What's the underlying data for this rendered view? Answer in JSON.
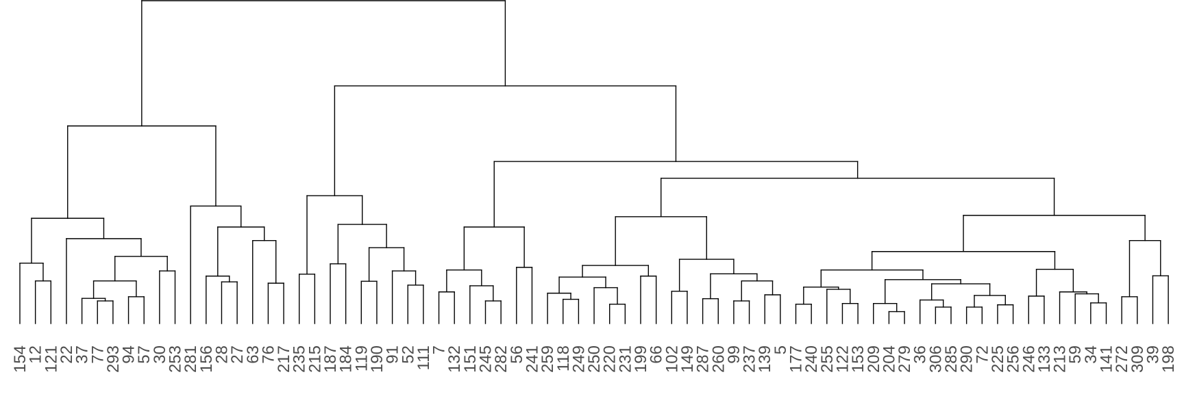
{
  "chart_data": {
    "type": "dendrogram",
    "title": "",
    "xlabel": "",
    "ylabel": "",
    "height_scale_note_visible": false,
    "line_color": "#000000",
    "label_color": "#4d4d4d",
    "leaf_order": [
      "154",
      "12",
      "121",
      "22",
      "37",
      "77",
      "293",
      "94",
      "57",
      "30",
      "253",
      "281",
      "156",
      "28",
      "27",
      "63",
      "76",
      "217",
      "235",
      "215",
      "187",
      "184",
      "119",
      "190",
      "91",
      "52",
      "111",
      "7",
      "132",
      "151",
      "245",
      "282",
      "56",
      "241",
      "259",
      "118",
      "249",
      "250",
      "220",
      "231",
      "199",
      "66",
      "102",
      "149",
      "287",
      "260",
      "99",
      "237",
      "139",
      "5",
      "177",
      "240",
      "255",
      "122",
      "153",
      "209",
      "204",
      "279",
      "36",
      "306",
      "285",
      "290",
      "72",
      "225",
      "256",
      "246",
      "133",
      "213",
      "59",
      "34",
      "141",
      "272",
      "309",
      "39",
      "198"
    ],
    "tree": {
      "h": 100,
      "c": [
        {
          "h": 61.2,
          "c": [
            {
              "h": 32.6,
              "c": [
                {
                  "h": 18.7,
                  "c": [
                    "154",
                    {
                      "h": 13.2,
                      "c": [
                        "12",
                        "121"
                      ]
                    }
                  ]
                },
                {
                  "h": 26.3,
                  "c": [
                    "22",
                    {
                      "h": 20.8,
                      "c": [
                        {
                          "h": 13.2,
                          "c": [
                            {
                              "h": 7.8,
                              "c": [
                                "37",
                                {
                                  "h": 7.0,
                                  "c": [
                                    "77",
                                    "293"
                                  ]
                                }
                              ]
                            },
                            {
                              "h": 8.3,
                              "c": [
                                "94",
                                "57"
                              ]
                            }
                          ]
                        },
                        {
                          "h": 16.3,
                          "c": [
                            "30",
                            "253"
                          ]
                        }
                      ]
                    }
                  ]
                }
              ]
            },
            {
              "h": 36.4,
              "c": [
                "281",
                {
                  "h": 29.9,
                  "c": [
                    {
                      "h": 14.7,
                      "c": [
                        "156",
                        {
                          "h": 12.9,
                          "c": [
                            "28",
                            "27"
                          ]
                        }
                      ]
                    },
                    {
                      "h": 25.7,
                      "c": [
                        "63",
                        {
                          "h": 12.5,
                          "c": [
                            "76",
                            "217"
                          ]
                        }
                      ]
                    }
                  ]
                }
              ]
            }
          ]
        },
        {
          "h": 73.6,
          "c": [
            {
              "h": 39.6,
              "c": [
                {
                  "h": 15.3,
                  "c": [
                    "235",
                    "215"
                  ]
                },
                {
                  "h": 30.7,
                  "c": [
                    {
                      "h": 18.5,
                      "c": [
                        "187",
                        "184"
                      ]
                    },
                    {
                      "h": 23.5,
                      "c": [
                        {
                          "h": 13.1,
                          "c": [
                            "119",
                            "190"
                          ]
                        },
                        {
                          "h": 16.3,
                          "c": [
                            "91",
                            {
                              "h": 11.9,
                              "c": [
                                "52",
                                "111"
                              ]
                            }
                          ]
                        }
                      ]
                    }
                  ]
                }
              ]
            },
            {
              "h": 50.2,
              "c": [
                {
                  "h": 29.9,
                  "c": [
                    {
                      "h": 16.6,
                      "c": [
                        {
                          "h": 9.8,
                          "c": [
                            "7",
                            "132"
                          ]
                        },
                        {
                          "h": 11.7,
                          "c": [
                            "151",
                            {
                              "h": 7.0,
                              "c": [
                                "245",
                                "282"
                              ]
                            }
                          ]
                        }
                      ]
                    },
                    {
                      "h": 17.4,
                      "c": [
                        "56",
                        "241"
                      ]
                    }
                  ]
                },
                {
                  "h": 45.0,
                  "c": [
                    {
                      "h": 33.1,
                      "c": [
                        {
                          "h": 18.0,
                          "c": [
                            {
                              "h": 14.4,
                              "c": [
                                {
                                  "h": 9.4,
                                  "c": [
                                    "259",
                                    {
                                      "h": 7.5,
                                      "c": [
                                        "118",
                                        "249"
                                      ]
                                    }
                                  ]
                                },
                                {
                                  "h": 11.1,
                                  "c": [
                                    "250",
                                    {
                                      "h": 6.0,
                                      "c": [
                                        "220",
                                        "231"
                                      ]
                                    }
                                  ]
                                }
                              ]
                            },
                            {
                              "h": 14.7,
                              "c": [
                                "199",
                                "66"
                              ]
                            }
                          ]
                        },
                        {
                          "h": 19.9,
                          "c": [
                            {
                              "h": 10.0,
                              "c": [
                                "102",
                                "149"
                              ]
                            },
                            {
                              "h": 15.4,
                              "c": [
                                {
                                  "h": 7.7,
                                  "c": [
                                    "287",
                                    "260"
                                  ]
                                },
                                {
                                  "h": 13.2,
                                  "c": [
                                    {
                                      "h": 7.0,
                                      "c": [
                                        "99",
                                        "237"
                                      ]
                                    },
                                    {
                                      "h": 8.9,
                                      "c": [
                                        "139",
                                        "5"
                                      ]
                                    }
                                  ]
                                }
                              ]
                            }
                          ]
                        }
                      ]
                    },
                    {
                      "h": 33.5,
                      "c": [
                        {
                          "h": 22.3,
                          "c": [
                            {
                              "h": 16.6,
                              "c": [
                                {
                                  "h": 11.3,
                                  "c": [
                                    {
                                      "h": 6.0,
                                      "c": [
                                        "177",
                                        "240"
                                      ]
                                    },
                                    {
                                      "h": 10.6,
                                      "c": [
                                        "255",
                                        {
                                          "h": 6.2,
                                          "c": [
                                            "122",
                                            "153"
                                          ]
                                        }
                                      ]
                                    }
                                  ]
                                },
                                {
                                  "h": 13.6,
                                  "c": [
                                    {
                                      "h": 6.2,
                                      "c": [
                                        "209",
                                        {
                                          "h": 3.7,
                                          "c": [
                                            "204",
                                            "279"
                                          ]
                                        }
                                      ]
                                    },
                                    {
                                      "h": 12.3,
                                      "c": [
                                        {
                                          "h": 7.3,
                                          "c": [
                                            "36",
                                            {
                                              "h": 5.1,
                                              "c": [
                                                "306",
                                                "285"
                                              ]
                                            }
                                          ]
                                        },
                                        {
                                          "h": 8.7,
                                          "c": [
                                            {
                                              "h": 5.1,
                                              "c": [
                                                "290",
                                                "72"
                                              ]
                                            },
                                            {
                                              "h": 5.8,
                                              "c": [
                                                "225",
                                                "256"
                                              ]
                                            }
                                          ]
                                        }
                                      ]
                                    }
                                  ]
                                }
                              ]
                            },
                            {
                              "h": 16.8,
                              "c": [
                                {
                                  "h": 8.5,
                                  "c": [
                                    "246",
                                    "133"
                                  ]
                                },
                                {
                                  "h": 9.8,
                                  "c": [
                                    "213",
                                    {
                                      "h": 9.2,
                                      "c": [
                                        "59",
                                        {
                                          "h": 6.4,
                                          "c": [
                                            "34",
                                            "141"
                                          ]
                                        }
                                      ]
                                    }
                                  ]
                                }
                              ]
                            }
                          ]
                        },
                        {
                          "h": 25.7,
                          "c": [
                            {
                              "h": 8.3,
                              "c": [
                                "272",
                                "309"
                              ]
                            },
                            {
                              "h": 14.8,
                              "c": [
                                "39",
                                "198"
                              ]
                            }
                          ]
                        }
                      ]
                    }
                  ]
                }
              ]
            }
          ]
        }
      ]
    }
  }
}
